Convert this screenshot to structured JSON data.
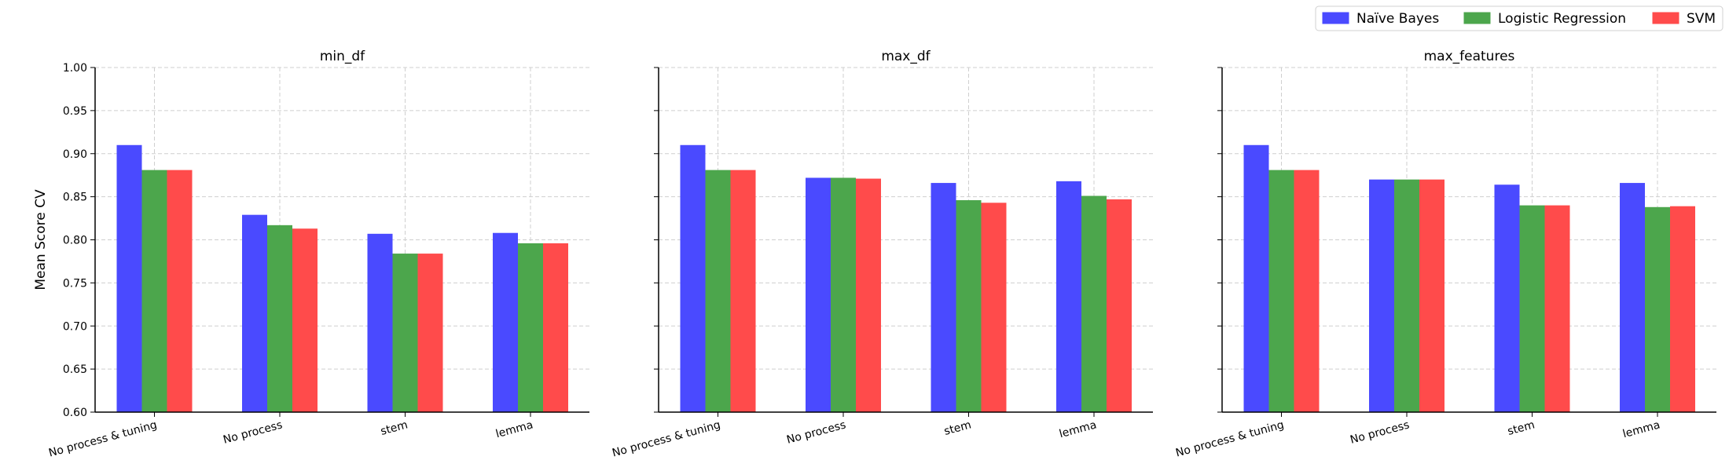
{
  "chart_data": {
    "type": "bar",
    "ylabel": "Mean Score CV",
    "ylim": [
      0.6,
      1.0
    ],
    "yticks": [
      "0.60",
      "0.65",
      "0.70",
      "0.75",
      "0.80",
      "0.85",
      "0.90",
      "0.95",
      "1.00"
    ],
    "grid": true,
    "legend_position": "top-right",
    "categories": [
      "No process & tuning",
      "No process",
      "stem",
      "lemma"
    ],
    "series_styles": [
      {
        "name": "Naïve Bayes",
        "color": "#4a4aff"
      },
      {
        "name": "Logistic Regression",
        "color": "#4ca64c"
      },
      {
        "name": "SVM",
        "color": "#ff4b4b"
      }
    ],
    "panels": [
      {
        "title": "min_df",
        "series": [
          {
            "name": "Naïve Bayes",
            "values": [
              0.91,
              0.829,
              0.807,
              0.808
            ]
          },
          {
            "name": "Logistic Regression",
            "values": [
              0.881,
              0.817,
              0.784,
              0.796
            ]
          },
          {
            "name": "SVM",
            "values": [
              0.881,
              0.813,
              0.784,
              0.796
            ]
          }
        ]
      },
      {
        "title": "max_df",
        "series": [
          {
            "name": "Naïve Bayes",
            "values": [
              0.91,
              0.872,
              0.866,
              0.868
            ]
          },
          {
            "name": "Logistic Regression",
            "values": [
              0.881,
              0.872,
              0.846,
              0.851
            ]
          },
          {
            "name": "SVM",
            "values": [
              0.881,
              0.871,
              0.843,
              0.847
            ]
          }
        ]
      },
      {
        "title": "max_features",
        "series": [
          {
            "name": "Naïve Bayes",
            "values": [
              0.91,
              0.87,
              0.864,
              0.866
            ]
          },
          {
            "name": "Logistic Regression",
            "values": [
              0.881,
              0.87,
              0.84,
              0.838
            ]
          },
          {
            "name": "SVM",
            "values": [
              0.881,
              0.87,
              0.84,
              0.839
            ]
          }
        ]
      }
    ]
  }
}
